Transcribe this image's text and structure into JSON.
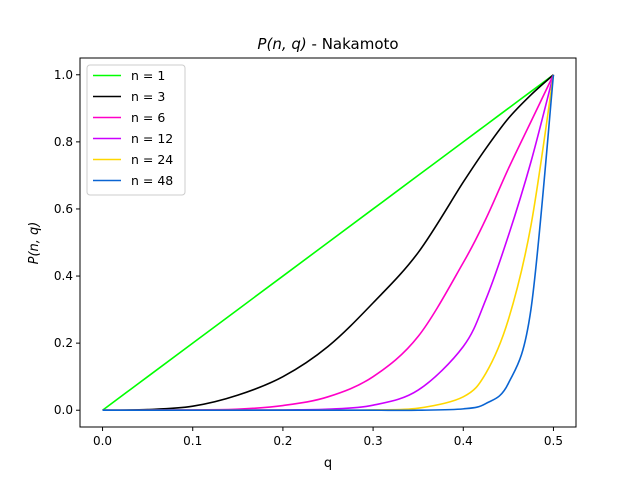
{
  "chart_data": {
    "type": "line",
    "title_main": "P(n, q)",
    "title_suffix": " - Nakamoto",
    "xlabel": "q",
    "ylabel": "P(n, q)",
    "xlim": [
      -0.025,
      0.525
    ],
    "ylim": [
      -0.05,
      1.05
    ],
    "xticks": [
      0.0,
      0.1,
      0.2,
      0.3,
      0.4,
      0.5
    ],
    "xtick_labels": [
      "0.0",
      "0.1",
      "0.2",
      "0.3",
      "0.4",
      "0.5"
    ],
    "yticks": [
      0.0,
      0.2,
      0.4,
      0.6,
      0.8,
      1.0
    ],
    "ytick_labels": [
      "0.0",
      "0.2",
      "0.4",
      "0.6",
      "0.8",
      "1.0"
    ],
    "grid": false,
    "legend_position": "top-left",
    "x": [
      0.0,
      0.05,
      0.1,
      0.15,
      0.2,
      0.25,
      0.3,
      0.35,
      0.4,
      0.425,
      0.45,
      0.475,
      0.5
    ],
    "series": [
      {
        "name": "n = 1",
        "color": "#00ff00",
        "values": [
          0.0,
          0.1,
          0.2,
          0.3,
          0.4,
          0.5,
          0.6,
          0.7,
          0.8,
          0.85,
          0.9,
          0.95,
          1.0
        ]
      },
      {
        "name": "n = 3",
        "color": "#000000",
        "values": [
          0.0,
          0.002,
          0.012,
          0.045,
          0.1,
          0.19,
          0.32,
          0.47,
          0.68,
          0.78,
          0.87,
          0.94,
          1.0
        ]
      },
      {
        "name": "n = 6",
        "color": "#ff00c8",
        "values": [
          0.0,
          0.0,
          0.001,
          0.003,
          0.014,
          0.04,
          0.1,
          0.22,
          0.44,
          0.57,
          0.72,
          0.86,
          1.0
        ]
      },
      {
        "name": "n = 12",
        "color": "#cc00ff",
        "values": [
          0.0,
          0.0,
          0.0,
          0.0,
          0.001,
          0.003,
          0.015,
          0.06,
          0.19,
          0.33,
          0.52,
          0.74,
          1.0
        ]
      },
      {
        "name": "n = 24",
        "color": "#ffd700",
        "values": [
          0.0,
          0.0,
          0.0,
          0.0,
          0.0,
          0.0,
          0.001,
          0.006,
          0.04,
          0.11,
          0.27,
          0.55,
          1.0
        ]
      },
      {
        "name": "n = 48",
        "color": "#0a64d2",
        "values": [
          0.0,
          0.0,
          0.0,
          0.0,
          0.0,
          0.0,
          0.0,
          0.0,
          0.004,
          0.02,
          0.08,
          0.3,
          1.0
        ]
      }
    ]
  }
}
